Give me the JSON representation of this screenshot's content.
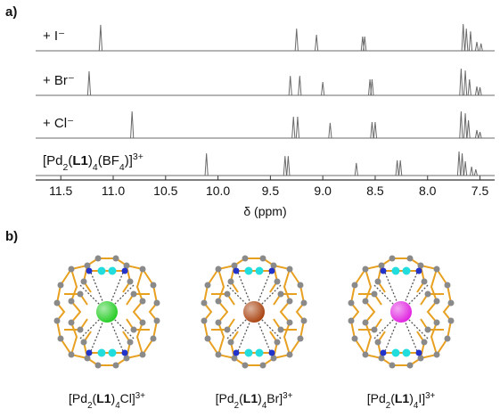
{
  "panel_a_label": "a)",
  "chart_data": {
    "type": "stick",
    "xlabel": "δ (ppm)",
    "xlim": [
      11.74,
      7.36
    ],
    "xticks": [
      11.5,
      {
        "value": 11,
        "label": "11.0"
      },
      10.5,
      {
        "value": 10,
        "label": "10.0"
      },
      9.5,
      {
        "value": 9,
        "label": "9.0"
      },
      8.5,
      {
        "value": 8,
        "label": "8.0"
      },
      7.5
    ],
    "ylim": [
      0,
      1
    ],
    "series": [
      {
        "label": [
          {
            "t": "+ I⁻"
          }
        ],
        "color": "#6a6a6a",
        "x": [
          11.12,
          9.25,
          9.06,
          8.62,
          8.6,
          7.66,
          7.63,
          7.59,
          7.53,
          7.49
        ],
        "values": [
          0.97,
          0.83,
          0.6,
          0.53,
          0.53,
          1.0,
          0.83,
          0.73,
          0.33,
          0.27
        ]
      },
      {
        "label": [
          {
            "t": "+ Br⁻"
          }
        ],
        "color": "#6a6a6a",
        "x": [
          11.23,
          9.31,
          9.22,
          9.0,
          8.55,
          8.53,
          7.68,
          7.64,
          7.6,
          7.53,
          7.5
        ],
        "values": [
          0.9,
          0.73,
          0.73,
          0.5,
          0.6,
          0.6,
          1.0,
          0.93,
          0.6,
          0.33,
          0.3
        ]
      },
      {
        "label": [
          {
            "t": "+ Cl⁻"
          }
        ],
        "color": "#6a6a6a",
        "x": [
          10.82,
          9.28,
          9.24,
          8.93,
          8.53,
          8.5,
          7.68,
          7.64,
          7.61,
          7.53,
          7.5
        ],
        "values": [
          1.0,
          0.8,
          0.8,
          0.57,
          0.6,
          0.6,
          1.0,
          0.93,
          0.67,
          0.3,
          0.23
        ]
      },
      {
        "label": [
          {
            "t": "[Pd"
          },
          {
            "t": "2",
            "sub": true
          },
          {
            "t": "("
          },
          {
            "t": "L1",
            "bold": true
          },
          {
            "t": ")"
          },
          {
            "t": "4",
            "sub": true
          },
          {
            "t": "(BF"
          },
          {
            "t": "4",
            "sub": true
          },
          {
            "t": ")]"
          },
          {
            "t": "3+",
            "sup": true
          }
        ],
        "color": "#6a6a6a",
        "x": [
          10.11,
          9.36,
          9.33,
          8.68,
          8.29,
          8.26,
          7.7,
          7.67,
          7.64,
          7.58,
          7.54
        ],
        "values": [
          0.83,
          0.73,
          0.73,
          0.47,
          0.57,
          0.57,
          0.9,
          0.83,
          0.53,
          0.33,
          0.23
        ]
      }
    ]
  },
  "panel_b_label": "b)",
  "structures": [
    {
      "label": [
        {
          "t": "[Pd"
        },
        {
          "t": "2",
          "sub": true
        },
        {
          "t": "("
        },
        {
          "t": "L1",
          "bold": true
        },
        {
          "t": ")"
        },
        {
          "t": "4",
          "sub": true
        },
        {
          "t": "Cl]"
        },
        {
          "t": "3+",
          "sup": true
        }
      ],
      "color": "#22cc22"
    },
    {
      "label": [
        {
          "t": "[Pd"
        },
        {
          "t": "2",
          "sub": true
        },
        {
          "t": "("
        },
        {
          "t": "L1",
          "bold": true
        },
        {
          "t": ")"
        },
        {
          "t": "4",
          "sub": true
        },
        {
          "t": "Br]"
        },
        {
          "t": "3+",
          "sup": true
        }
      ],
      "color": "#a8400c"
    },
    {
      "label": [
        {
          "t": "[Pd"
        },
        {
          "t": "2",
          "sub": true
        },
        {
          "t": "("
        },
        {
          "t": "L1",
          "bold": true
        },
        {
          "t": ")"
        },
        {
          "t": "4",
          "sub": true
        },
        {
          "t": "I]"
        },
        {
          "t": "3+",
          "sup": true
        }
      ],
      "color": "#e020e0"
    }
  ]
}
